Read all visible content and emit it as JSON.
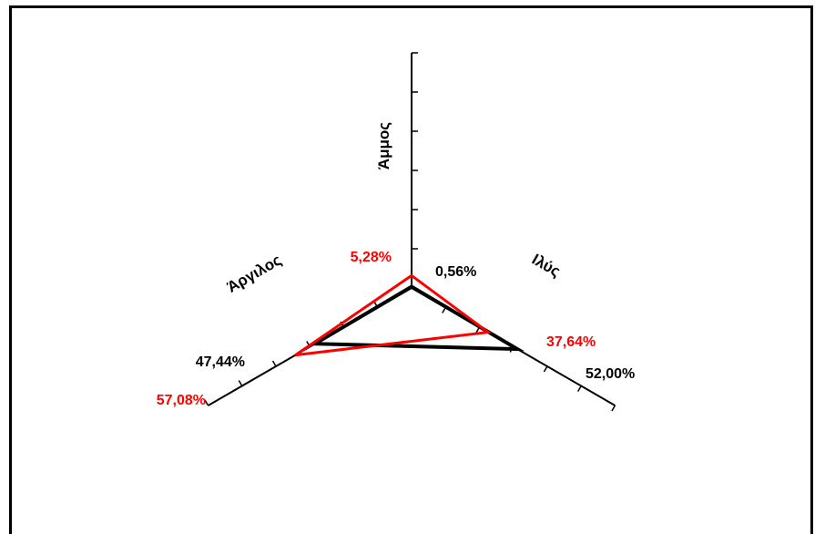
{
  "chart_data": {
    "type": "radar",
    "axes": [
      "Άμμος",
      "Ιλύς",
      "Άργιλος"
    ],
    "scale_max": 100,
    "tick_count": 6,
    "grid": false,
    "legend": "none",
    "series": [
      {
        "values": [
          0.56,
          52.0,
          47.44
        ],
        "labels": [
          "0,56%",
          "52,00%",
          "47,44%"
        ],
        "color": "#000000"
      },
      {
        "values": [
          5.28,
          37.64,
          57.08
        ],
        "labels": [
          "5,28%",
          "37,64%",
          "57,08%"
        ],
        "color": "#ff0000"
      }
    ]
  }
}
